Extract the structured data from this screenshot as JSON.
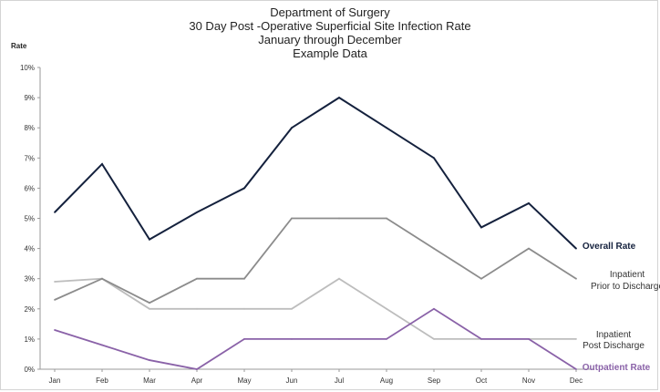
{
  "chart_data": {
    "type": "line",
    "title_lines": [
      "Department of Surgery",
      "30 Day Post -Operative Superficial Site Infection Rate",
      "January through December",
      "Example Data"
    ],
    "ylabel": "Rate",
    "xlabel": "",
    "ylim": [
      0,
      10
    ],
    "yticks": [
      "0%",
      "1%",
      "2%",
      "3%",
      "4%",
      "5%",
      "6%",
      "7%",
      "8%",
      "9%",
      "10%"
    ],
    "categories": [
      "Jan",
      "Feb",
      "Mar",
      "Apr",
      "May",
      "Jun",
      "Jul",
      "Aug",
      "Sep",
      "Oct",
      "Nov",
      "Dec"
    ],
    "series": [
      {
        "name": "Overall Rate",
        "label_lines": [
          "Overall Rate"
        ],
        "color": "#14213d",
        "bold": true,
        "values": [
          5.2,
          6.8,
          4.3,
          5.2,
          6.0,
          8.0,
          9.0,
          8.0,
          7.0,
          4.7,
          5.5,
          4.0
        ]
      },
      {
        "name": "Inpatient Prior to Discharge",
        "label_lines": [
          "Inpatient",
          "Prior to Discharge"
        ],
        "color": "#8c8c8c",
        "bold": false,
        "values": [
          2.3,
          3.0,
          2.2,
          3.0,
          3.0,
          5.0,
          5.0,
          5.0,
          4.0,
          3.0,
          4.0,
          3.0
        ]
      },
      {
        "name": "Inpatient Post Discharge",
        "label_lines": [
          "Inpatient",
          "Post Discharge"
        ],
        "color": "#bdbdbd",
        "bold": false,
        "values": [
          2.9,
          3.0,
          2.0,
          2.0,
          2.0,
          2.0,
          3.0,
          2.0,
          1.0,
          1.0,
          1.0,
          1.0
        ]
      },
      {
        "name": "Outpatient Rate",
        "label_lines": [
          "Outpatient Rate"
        ],
        "color": "#8a62a8",
        "bold": true,
        "values": [
          1.3,
          0.8,
          0.3,
          0.0,
          1.0,
          1.0,
          1.0,
          1.0,
          2.0,
          1.0,
          1.0,
          0.0
        ]
      }
    ]
  }
}
